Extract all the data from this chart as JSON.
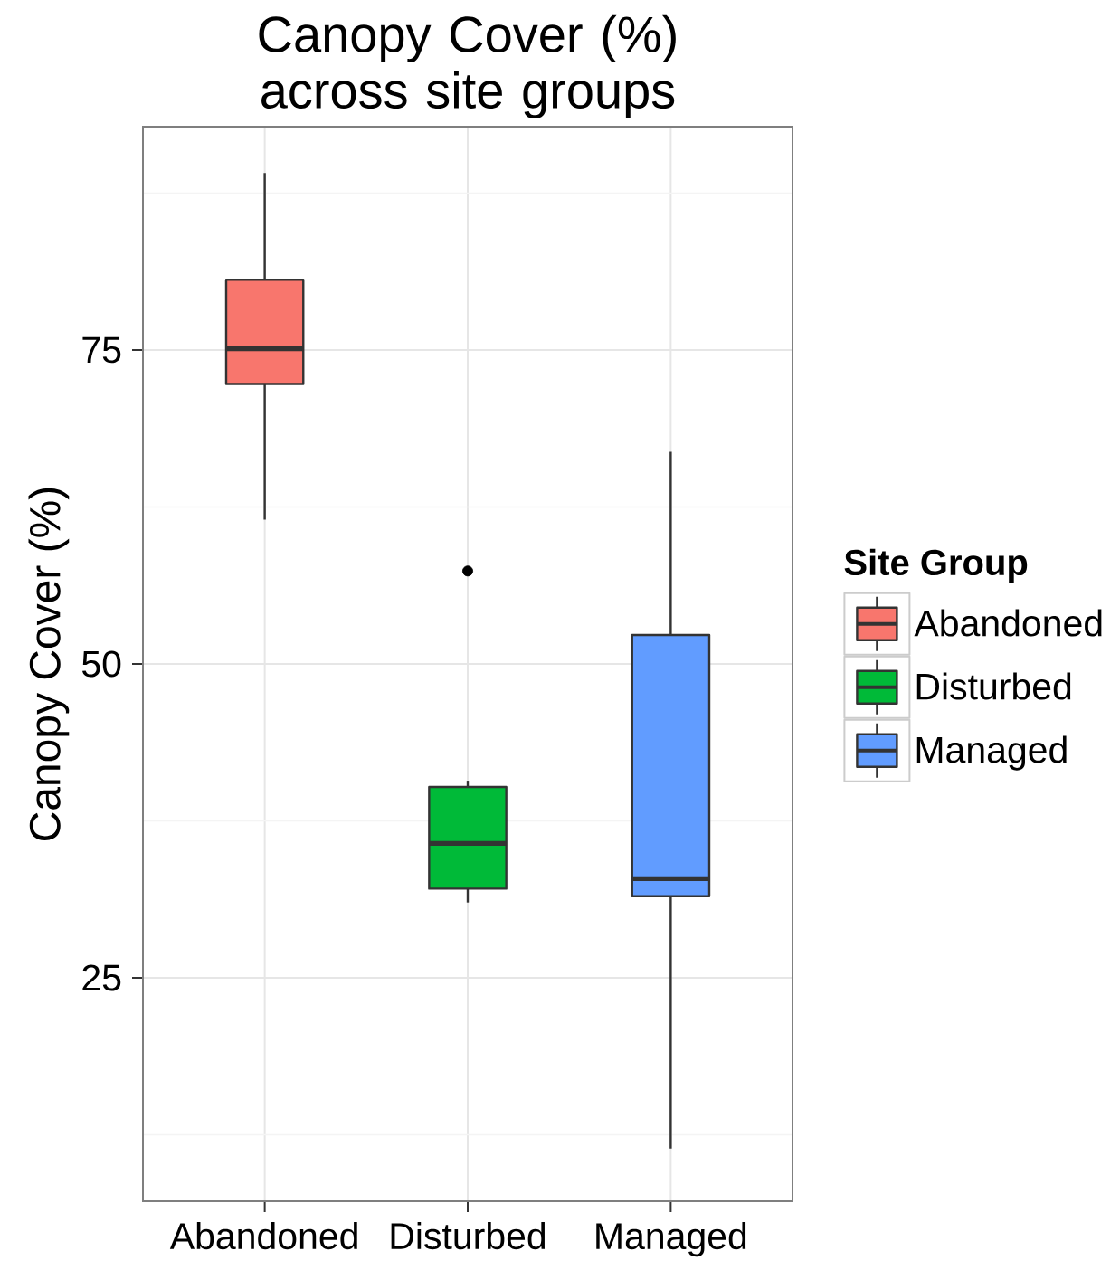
{
  "chart_data": {
    "type": "box",
    "title": "Canopy Cover (%) across site groups",
    "ylabel": "Canopy Cover (%)",
    "legend_title": "Site Group",
    "categories": [
      "Abandoned",
      "Disturbed",
      "Managed"
    ],
    "series": [
      {
        "name": "Abandoned",
        "color": "#f8766d",
        "boxes": [
          {
            "low": 61.5,
            "q1": 72.3,
            "median": 75.1,
            "q3": 80.6,
            "high": 89.1
          },
          null,
          null
        ]
      },
      {
        "name": "Disturbed",
        "color": "#00ba38",
        "boxes": [
          null,
          {
            "low": 31.0,
            "q1": 32.1,
            "median": 35.7,
            "q3": 40.2,
            "high": 40.7,
            "outliers": [
              57.4
            ]
          },
          null
        ]
      },
      {
        "name": "Managed",
        "color": "#619cff",
        "boxes": [
          null,
          null,
          {
            "low": 11.4,
            "q1": 31.5,
            "median": 32.9,
            "q3": 52.3,
            "high": 66.9
          }
        ]
      }
    ],
    "ylim": [
      7.2,
      92.8
    ],
    "yticks": [
      25,
      50,
      75
    ],
    "grid": true,
    "legend": "right"
  }
}
